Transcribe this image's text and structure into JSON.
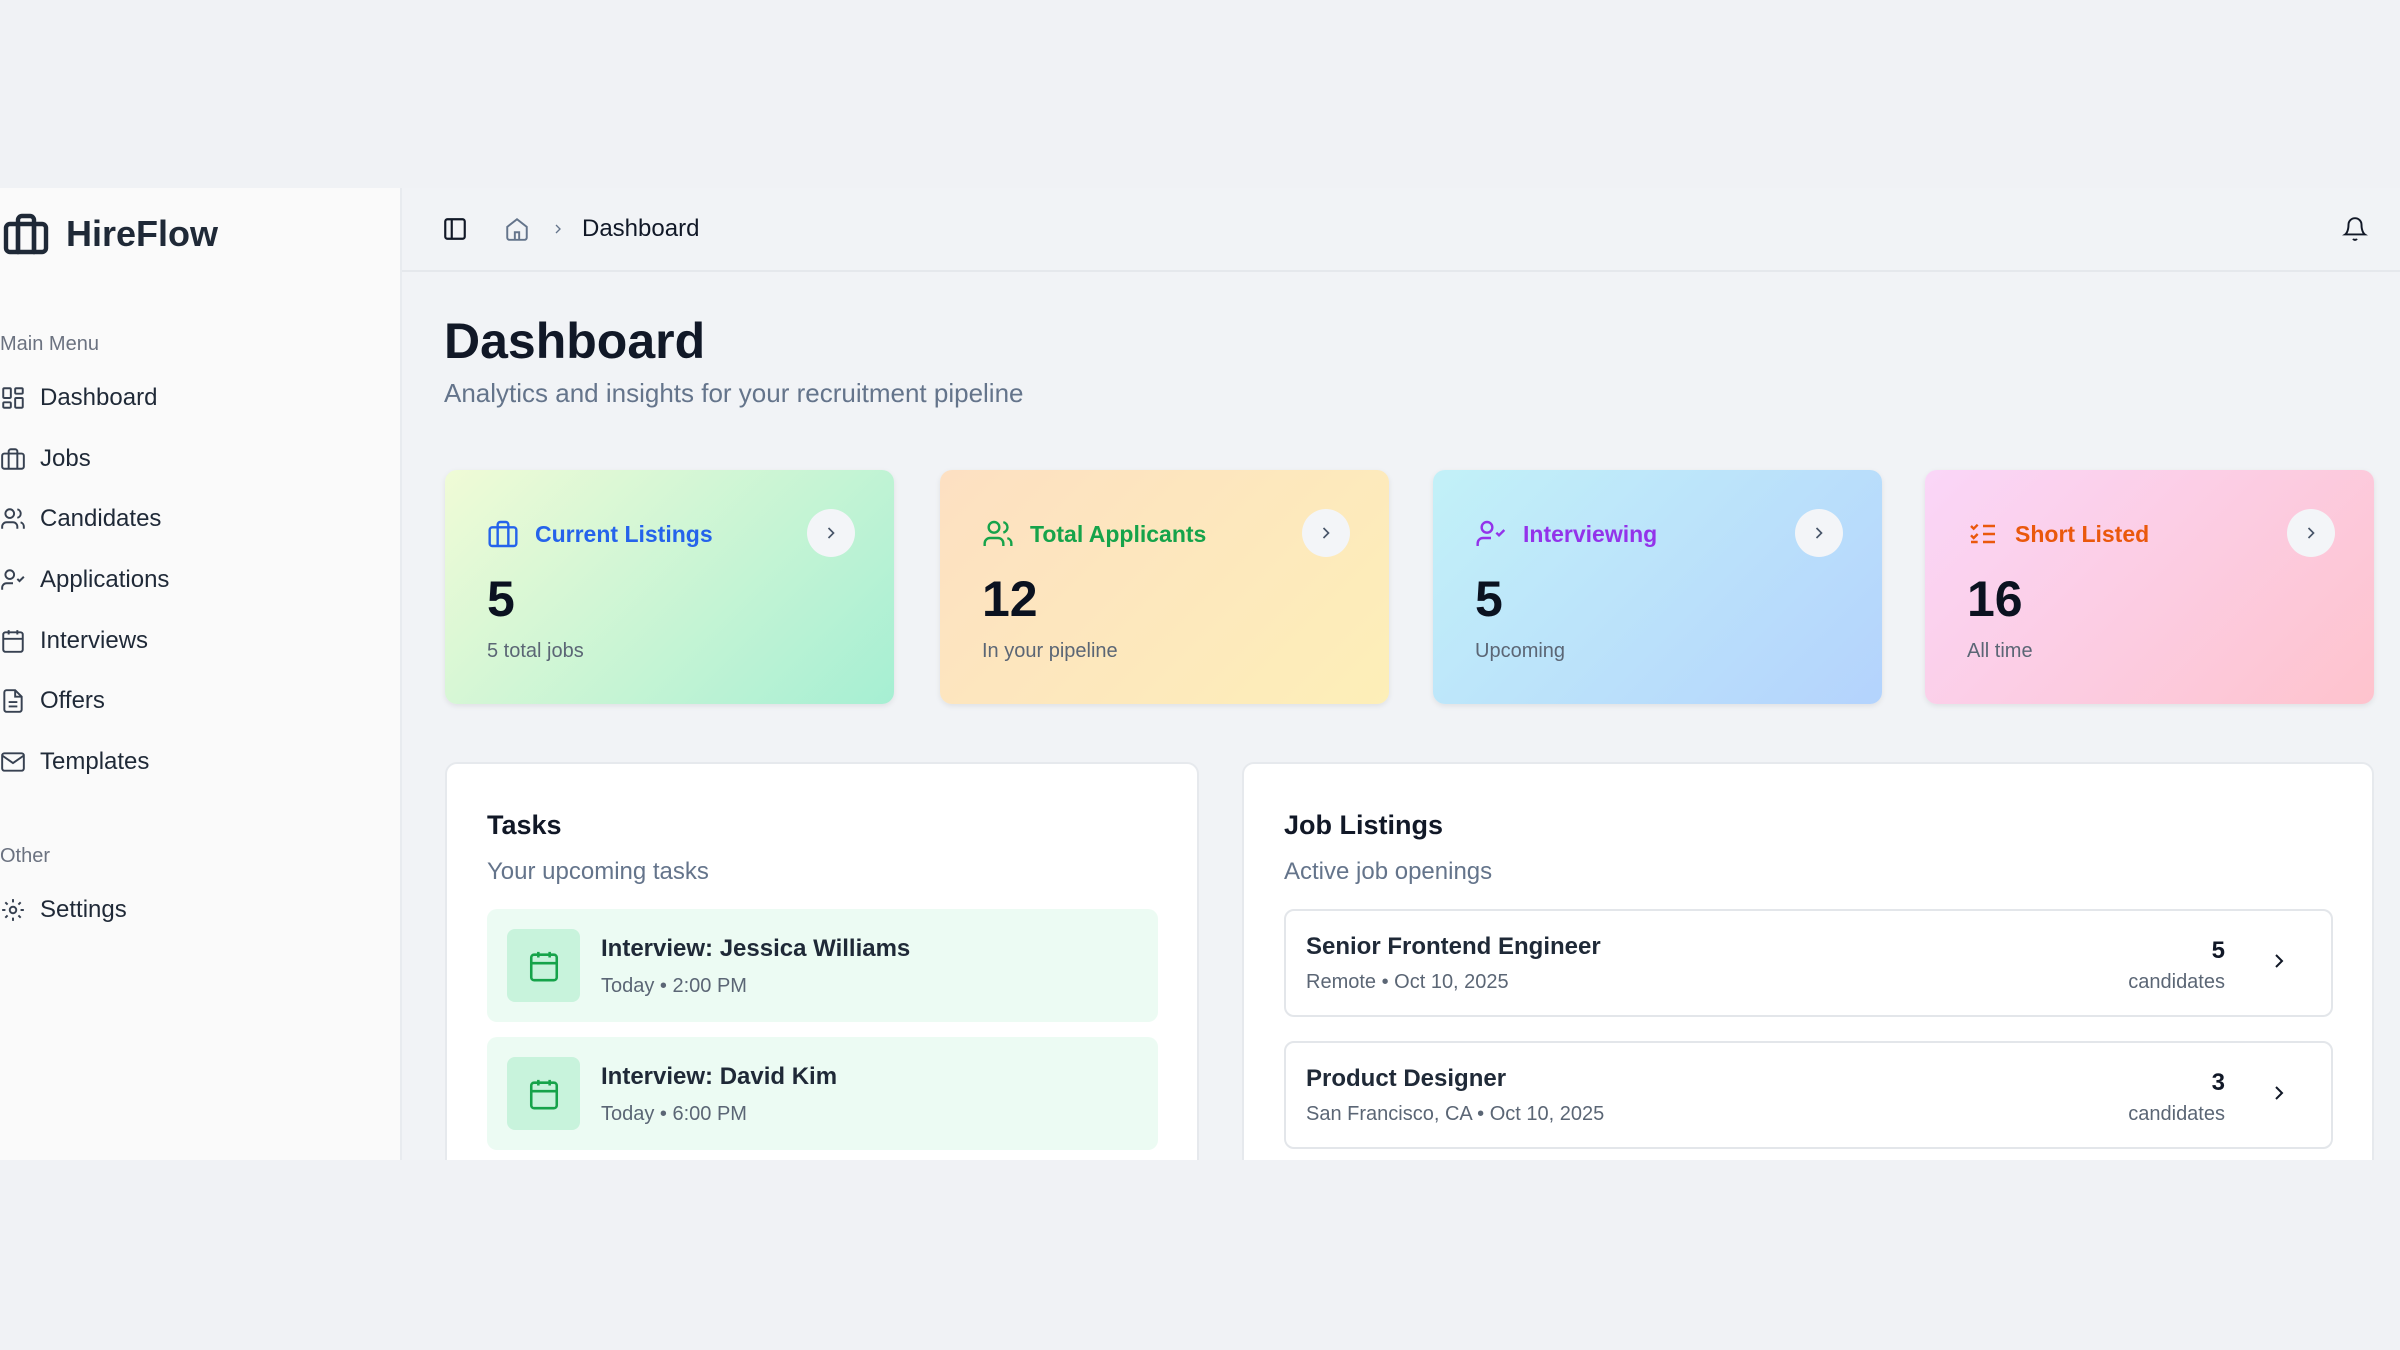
{
  "app": {
    "name": "HireFlow"
  },
  "sidebar": {
    "main_menu_label": "Main Menu",
    "items": [
      {
        "label": "Dashboard",
        "icon": "layout-grid-icon"
      },
      {
        "label": "Jobs",
        "icon": "briefcase-icon"
      },
      {
        "label": "Candidates",
        "icon": "users-icon"
      },
      {
        "label": "Applications",
        "icon": "user-check-icon"
      },
      {
        "label": "Interviews",
        "icon": "calendar-icon"
      },
      {
        "label": "Offers",
        "icon": "file-text-icon"
      },
      {
        "label": "Templates",
        "icon": "mail-icon"
      }
    ],
    "other_label": "Other",
    "other_items": [
      {
        "label": "Settings",
        "icon": "gear-icon"
      }
    ]
  },
  "header": {
    "breadcrumb": "Dashboard"
  },
  "page": {
    "title": "Dashboard",
    "subtitle": "Analytics and insights for your recruitment pipeline"
  },
  "stats": [
    {
      "label": "Current Listings",
      "value": "5",
      "sub": "5 total jobs",
      "color": "#2563eb"
    },
    {
      "label": "Total Applicants",
      "value": "12",
      "sub": "In your pipeline",
      "color": "#16a34a"
    },
    {
      "label": "Interviewing",
      "value": "5",
      "sub": "Upcoming",
      "color": "#9333ea"
    },
    {
      "label": "Short Listed",
      "value": "16",
      "sub": "All time",
      "color": "#ea580c"
    }
  ],
  "tasks": {
    "title": "Tasks",
    "subtitle": "Your upcoming tasks",
    "items": [
      {
        "title": "Interview: Jessica Williams",
        "sub": "Today • 2:00 PM"
      },
      {
        "title": "Interview: David Kim",
        "sub": "Today • 6:00 PM"
      }
    ]
  },
  "jobs": {
    "title": "Job Listings",
    "subtitle": "Active job openings",
    "items": [
      {
        "title": "Senior Frontend Engineer",
        "sub": "Remote • Oct 10, 2025",
        "count": "5",
        "count_label": "candidates"
      },
      {
        "title": "Product Designer",
        "sub": "San Francisco, CA • Oct 10, 2025",
        "count": "3",
        "count_label": "candidates"
      }
    ]
  }
}
